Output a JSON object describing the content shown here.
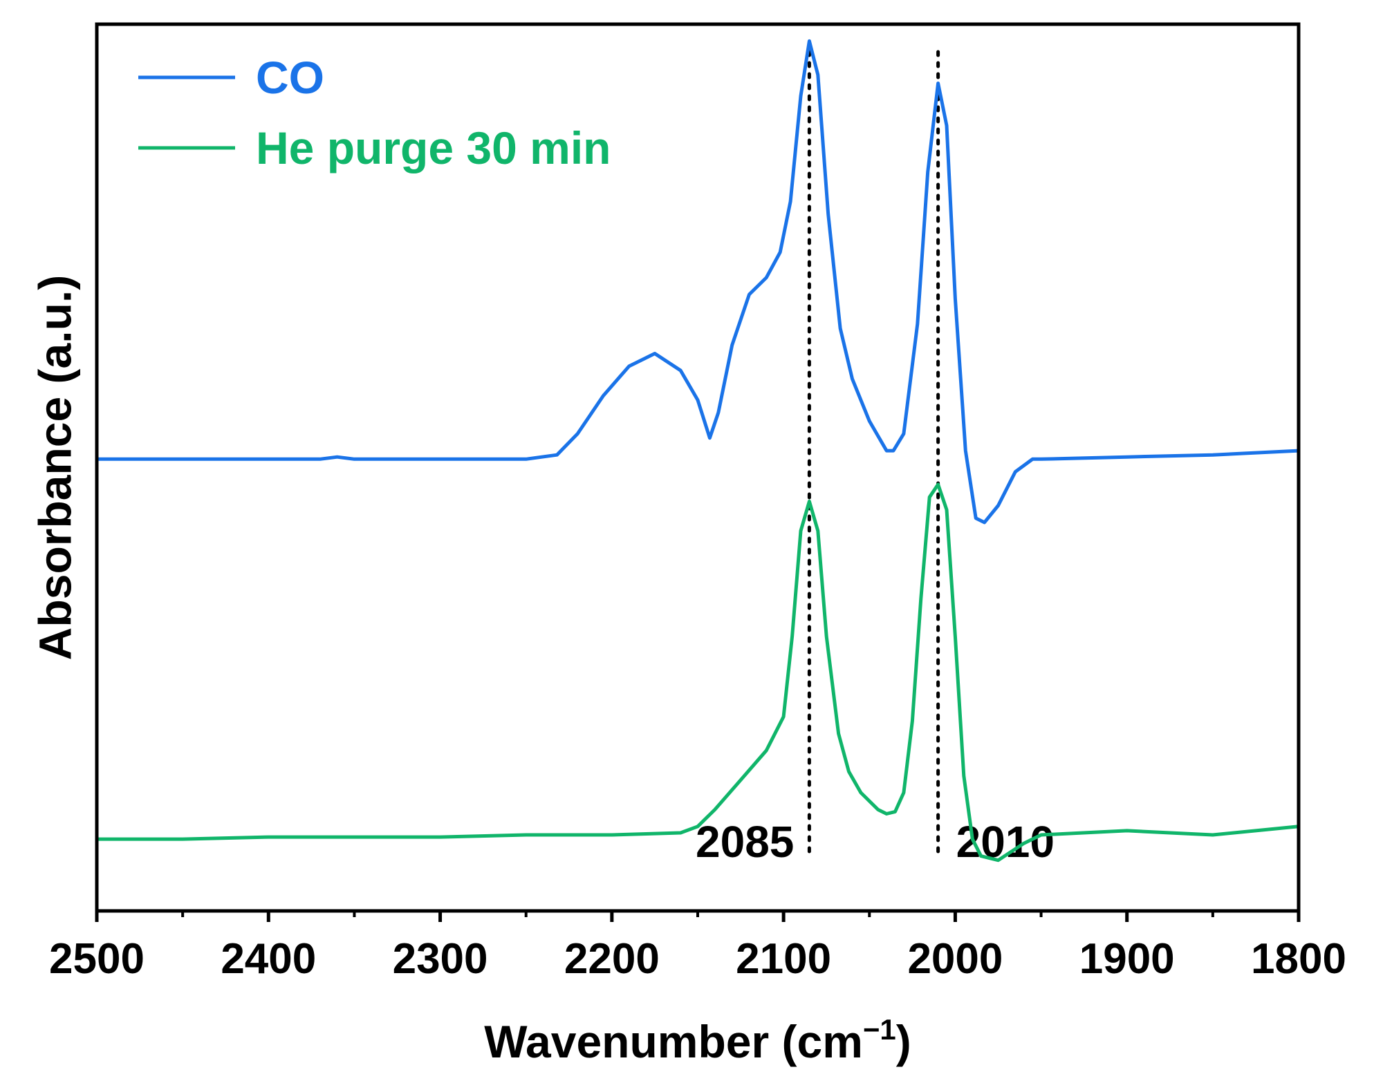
{
  "chart_data": {
    "type": "line",
    "title": "",
    "xlabel": "Wavenumber (cm⁻¹)",
    "xlabel_main": "Wavenumber (cm",
    "xlabel_sup": "−1",
    "xlabel_close": ")",
    "ylabel": "Absorbance (a.u.)",
    "x_reversed": true,
    "xlim": [
      2500,
      1800
    ],
    "ylim": [
      -0.1,
      2.0
    ],
    "x_ticks": [
      2500,
      2400,
      2300,
      2200,
      2100,
      2000,
      1900,
      1800
    ],
    "x_tick_labels": [
      "2500",
      "2400",
      "2300",
      "2200",
      "2100",
      "2000",
      "1900",
      "1800"
    ],
    "y_ticks_shown": false,
    "grid": false,
    "legend_position": "top-left",
    "series": [
      {
        "name": "CO",
        "color": "#1a73e8",
        "x": [
          2500,
          2450,
          2400,
          2370,
          2360,
          2350,
          2300,
          2250,
          2232,
          2220,
          2205,
          2190,
          2175,
          2160,
          2150,
          2143,
          2138,
          2130,
          2120,
          2110,
          2102,
          2096,
          2090,
          2085,
          2080,
          2074,
          2067,
          2060,
          2050,
          2040,
          2036,
          2030,
          2022,
          2016,
          2010,
          2005,
          2000,
          1994,
          1988,
          1983,
          1975,
          1965,
          1955,
          1950,
          1900,
          1850,
          1800
        ],
        "values": [
          0.97,
          0.97,
          0.97,
          0.97,
          0.975,
          0.97,
          0.97,
          0.97,
          0.98,
          1.03,
          1.12,
          1.19,
          1.22,
          1.18,
          1.11,
          1.02,
          1.08,
          1.24,
          1.36,
          1.4,
          1.46,
          1.58,
          1.83,
          1.96,
          1.88,
          1.55,
          1.28,
          1.16,
          1.06,
          0.99,
          0.99,
          1.03,
          1.29,
          1.65,
          1.86,
          1.76,
          1.35,
          0.99,
          0.83,
          0.82,
          0.86,
          0.94,
          0.97,
          0.97,
          0.975,
          0.98,
          0.99
        ]
      },
      {
        "name": "He purge 30 min",
        "color": "#10b56a",
        "x": [
          2500,
          2450,
          2400,
          2350,
          2300,
          2250,
          2200,
          2160,
          2150,
          2140,
          2125,
          2110,
          2100,
          2095,
          2090,
          2085,
          2080,
          2075,
          2068,
          2062,
          2055,
          2045,
          2040,
          2035,
          2030,
          2025,
          2020,
          2015,
          2010,
          2005,
          2000,
          1995,
          1990,
          1985,
          1975,
          1960,
          1950,
          1900,
          1850,
          1800
        ],
        "values": [
          0.07,
          0.07,
          0.075,
          0.075,
          0.075,
          0.08,
          0.08,
          0.085,
          0.1,
          0.14,
          0.21,
          0.28,
          0.36,
          0.55,
          0.8,
          0.87,
          0.8,
          0.55,
          0.32,
          0.23,
          0.18,
          0.14,
          0.13,
          0.135,
          0.18,
          0.35,
          0.64,
          0.88,
          0.91,
          0.85,
          0.55,
          0.22,
          0.07,
          0.03,
          0.02,
          0.06,
          0.08,
          0.09,
          0.08,
          0.1
        ]
      }
    ],
    "annotations": [
      {
        "x": 2085,
        "label": "2085",
        "style": "dotted-vertical",
        "label_side": "left"
      },
      {
        "x": 2010,
        "label": "2010",
        "style": "dotted-vertical",
        "label_side": "right"
      }
    ]
  }
}
